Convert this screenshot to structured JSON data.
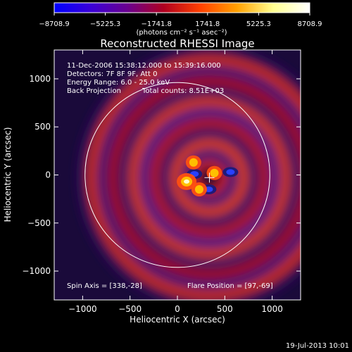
{
  "colorbar": {
    "tick_labels": [
      "-8708.9",
      "-5225.3",
      "-1741.8",
      "1741.8",
      "5225.3",
      "8708.9"
    ],
    "range": [
      -8708.9,
      8708.9
    ],
    "colormap": [
      "#0000ff",
      "#3a00d8",
      "#6a0090",
      "#b00020",
      "#ff4000",
      "#ffa000",
      "#ffff90",
      "#ffffff"
    ],
    "units": "(photons cm⁻² s⁻¹ asec⁻²)"
  },
  "chart_data": {
    "type": "heatmap",
    "title": "Reconstructed RHESSI Image",
    "xlabel": "Heliocentric X (arcsec)",
    "ylabel": "Heliocentric Y (arcsec)",
    "xlim": [
      -1300,
      1300
    ],
    "ylim": [
      -1300,
      1300
    ],
    "xticks": [
      -1000,
      -500,
      0,
      500,
      1000
    ],
    "yticks": [
      -1000,
      -500,
      0,
      500,
      1000
    ],
    "xtick_labels": [
      "−1000",
      "−500",
      "0",
      "500",
      "1000"
    ],
    "ytick_labels": [
      "−1000",
      "−500",
      "0",
      "500",
      "1000"
    ],
    "grid": false,
    "solar_limb": {
      "center": [
        0,
        0
      ],
      "radius": 975
    },
    "crosshair": [
      338,
      -28
    ],
    "hot_spots": [
      [
        97,
        -69
      ],
      [
        390,
        20
      ],
      [
        170,
        130
      ],
      [
        230,
        -150
      ]
    ],
    "cold_spots": [
      [
        180,
        10
      ],
      [
        330,
        -150
      ],
      [
        560,
        30
      ]
    ],
    "annotations": {
      "time_range": "11-Dec-2006 15:38:12.000 to 15:39:16.000",
      "detectors": "Detectors: 7F 8F 9F, Att 0",
      "energy_range": "Energy Range: 6.0 - 25.0 keV",
      "method": "Back Projection",
      "total_counts": "Total counts: 8.51E+03",
      "spin_axis": "Spin Axis = [338,-28]",
      "flare_position": "Flare Position = [97,-69]"
    }
  },
  "footer": {
    "timestamp": "19-Jul-2013 10:01"
  }
}
